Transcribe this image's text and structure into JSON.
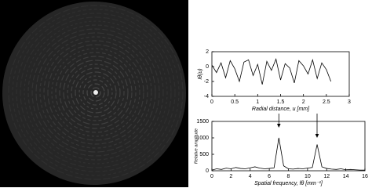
{
  "chart_data": [
    {
      "type": "line",
      "ylabel": "Iθ(u)",
      "xlabel": "Radial distance, u [mm]",
      "x": [
        0,
        0.1,
        0.2,
        0.3,
        0.4,
        0.5,
        0.6,
        0.7,
        0.8,
        0.9,
        1,
        1.1,
        1.2,
        1.3,
        1.4,
        1.5,
        1.6,
        1.7,
        1.8,
        1.9,
        2,
        2.1,
        2.2,
        2.3,
        2.4,
        2.5,
        2.6
      ],
      "values": [
        0.2,
        -0.8,
        0.5,
        -1.5,
        0.8,
        -0.3,
        -2.0,
        0.6,
        0.9,
        -1.2,
        0.3,
        -2.4,
        0.7,
        -0.5,
        1.0,
        -1.8,
        0.4,
        -0.2,
        -2.2,
        0.8,
        0.1,
        -1.0,
        0.9,
        -1.6,
        0.5,
        -0.4,
        -2.0
      ],
      "color": "#000000",
      "xlim": [
        0,
        3
      ],
      "xticks": [
        0,
        0.5,
        1,
        1.5,
        2,
        2.5,
        3
      ],
      "ylim": [
        -4,
        2
      ],
      "yticks": [
        -4,
        -2,
        0,
        2
      ]
    },
    {
      "type": "line",
      "ylabel": "Relative amplitude",
      "xlabel": "Spatial frequency, fθ [mm⁻¹]",
      "x": [
        0,
        0.5,
        1,
        1.5,
        2,
        2.5,
        3,
        3.5,
        4,
        4.5,
        5,
        5.5,
        6,
        6.5,
        7,
        7.5,
        8,
        8.5,
        9,
        9.5,
        10,
        10.5,
        11,
        11.5,
        12,
        12.5,
        13,
        13.5,
        14,
        14.5,
        15,
        15.5,
        16
      ],
      "values": [
        20,
        60,
        40,
        80,
        60,
        100,
        70,
        60,
        90,
        120,
        80,
        60,
        70,
        90,
        1000,
        150,
        60,
        50,
        70,
        60,
        80,
        100,
        800,
        120,
        70,
        50,
        40,
        60,
        30,
        40,
        30,
        20,
        20
      ],
      "color": "#000000",
      "xlim": [
        0,
        16
      ],
      "xticks": [
        0,
        2,
        4,
        6,
        8,
        10,
        12,
        14,
        16
      ],
      "ylim": [
        0,
        1500
      ],
      "yticks": [
        0,
        500,
        1000,
        1500
      ]
    }
  ]
}
